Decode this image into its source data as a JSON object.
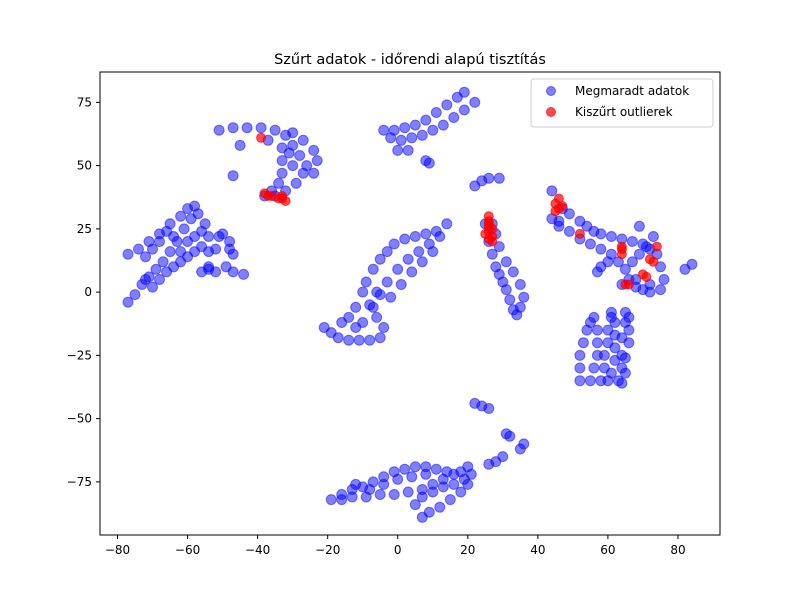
{
  "chart_data": {
    "type": "scatter",
    "title": "Szűrt adatok - időrendi alapú tisztítás",
    "xlabel": "",
    "ylabel": "",
    "xlim": [
      -85,
      92
    ],
    "ylim": [
      -96,
      87
    ],
    "x_ticks": [
      -80,
      -60,
      -40,
      -20,
      0,
      20,
      40,
      60,
      80
    ],
    "y_ticks": [
      -75,
      -50,
      -25,
      0,
      25,
      50,
      75
    ],
    "x_tick_labels": [
      "−80",
      "−60",
      "−40",
      "−20",
      "0",
      "20",
      "40",
      "60",
      "80"
    ],
    "y_tick_labels": [
      "−75",
      "−50",
      "−25",
      "0",
      "25",
      "50",
      "75"
    ],
    "grid": false,
    "legend_position": "top-right",
    "series": [
      {
        "name": "Megmaradt adatok",
        "color": "#0000ff",
        "alpha": 0.5,
        "points": [
          [
            -77,
            -4
          ],
          [
            -75,
            -1
          ],
          [
            -73,
            3
          ],
          [
            -71,
            6
          ],
          [
            -69,
            9
          ],
          [
            -67,
            12
          ],
          [
            -65,
            16
          ],
          [
            -63,
            20
          ],
          [
            -61,
            25
          ],
          [
            -59,
            29
          ],
          [
            -57,
            31
          ],
          [
            -55,
            27
          ],
          [
            -54,
            22
          ],
          [
            -54,
            16
          ],
          [
            -54,
            10
          ],
          [
            -56,
            8
          ],
          [
            -77,
            15
          ],
          [
            -74,
            17
          ],
          [
            -71,
            20
          ],
          [
            -68,
            23
          ],
          [
            -65,
            27
          ],
          [
            -62,
            30
          ],
          [
            -60,
            33
          ],
          [
            -58,
            34
          ],
          [
            -72,
            5
          ],
          [
            -70,
            2
          ],
          [
            -68,
            5
          ],
          [
            -66,
            8
          ],
          [
            -64,
            10
          ],
          [
            -62,
            12
          ],
          [
            -60,
            14
          ],
          [
            -58,
            16
          ],
          [
            -56,
            18
          ],
          [
            -60,
            20
          ],
          [
            -58,
            22
          ],
          [
            -56,
            24
          ],
          [
            -62,
            16
          ],
          [
            -64,
            22
          ],
          [
            -66,
            24
          ],
          [
            -68,
            20
          ],
          [
            -70,
            17
          ],
          [
            -72,
            14
          ],
          [
            -52,
            8
          ],
          [
            -54,
            9
          ],
          [
            -52,
            17
          ],
          [
            -51,
            22
          ],
          [
            -50,
            23
          ],
          [
            -48,
            20
          ],
          [
            -48,
            17
          ],
          [
            -47,
            15
          ],
          [
            -49,
            10
          ],
          [
            -47,
            8
          ],
          [
            -44,
            7
          ],
          [
            -51,
            64
          ],
          [
            -47,
            65
          ],
          [
            -43,
            65
          ],
          [
            -39,
            65
          ],
          [
            -35,
            64
          ],
          [
            -32,
            62
          ],
          [
            -30,
            58
          ],
          [
            -28,
            54
          ],
          [
            -26,
            50
          ],
          [
            -24,
            47
          ],
          [
            -23,
            52
          ],
          [
            -24,
            56
          ],
          [
            -27,
            60
          ],
          [
            -30,
            63
          ],
          [
            -33,
            57
          ],
          [
            -33,
            52
          ],
          [
            -33,
            47
          ],
          [
            -34,
            43
          ],
          [
            -36,
            40
          ],
          [
            -38,
            38
          ],
          [
            -35,
            38
          ],
          [
            -32,
            40
          ],
          [
            -29,
            43
          ],
          [
            -27,
            47
          ],
          [
            -30,
            50
          ],
          [
            -31,
            55
          ],
          [
            -45,
            58
          ],
          [
            -47,
            46
          ],
          [
            -37,
            60
          ],
          [
            -21,
            -14
          ],
          [
            -19,
            -16
          ],
          [
            -17,
            -18
          ],
          [
            -14,
            -19
          ],
          [
            -11,
            -19
          ],
          [
            -8,
            -19
          ],
          [
            -5,
            -18
          ],
          [
            -4,
            -14
          ],
          [
            -6,
            -10
          ],
          [
            -8,
            -5
          ],
          [
            -10,
            0
          ],
          [
            -12,
            -6
          ],
          [
            -14,
            -10
          ],
          [
            -16,
            -12
          ],
          [
            -9,
            4
          ],
          [
            -7,
            9
          ],
          [
            -5,
            13
          ],
          [
            -3,
            16
          ],
          [
            -1,
            19
          ],
          [
            2,
            21
          ],
          [
            5,
            22
          ],
          [
            8,
            23
          ],
          [
            11,
            24
          ],
          [
            14,
            27
          ],
          [
            12,
            22
          ],
          [
            9,
            19
          ],
          [
            6,
            16
          ],
          [
            3,
            13
          ],
          [
            0,
            9
          ],
          [
            -3,
            4
          ],
          [
            -5,
            -1
          ],
          [
            -7,
            -6
          ],
          [
            -10,
            -12
          ],
          [
            -2,
            -2
          ],
          [
            1,
            3
          ],
          [
            4,
            8
          ],
          [
            7,
            12
          ],
          [
            10,
            16
          ],
          [
            -6,
            0
          ],
          [
            -12,
            -14
          ],
          [
            -4,
            64
          ],
          [
            -1,
            64
          ],
          [
            2,
            65
          ],
          [
            5,
            66
          ],
          [
            8,
            68
          ],
          [
            11,
            71
          ],
          [
            14,
            74
          ],
          [
            17,
            77
          ],
          [
            19,
            79
          ],
          [
            22,
            75
          ],
          [
            19,
            72
          ],
          [
            16,
            69
          ],
          [
            13,
            66
          ],
          [
            10,
            64
          ],
          [
            7,
            62
          ],
          [
            4,
            61
          ],
          [
            1,
            60
          ],
          [
            -2,
            61
          ],
          [
            0,
            56
          ],
          [
            3,
            56
          ],
          [
            8,
            52
          ],
          [
            9,
            51
          ],
          [
            22,
            42
          ],
          [
            24,
            44
          ],
          [
            26,
            45
          ],
          [
            29,
            45
          ],
          [
            26,
            20
          ],
          [
            27,
            15
          ],
          [
            28,
            10
          ],
          [
            29,
            7
          ],
          [
            30,
            4
          ],
          [
            31,
            1
          ],
          [
            32,
            -3
          ],
          [
            33,
            -7
          ],
          [
            34,
            -9
          ],
          [
            35,
            -6
          ],
          [
            36,
            -2
          ],
          [
            35,
            3
          ],
          [
            33,
            8
          ],
          [
            31,
            12
          ],
          [
            29,
            18
          ],
          [
            28,
            23
          ],
          [
            27,
            27
          ],
          [
            25,
            27
          ],
          [
            44,
            40
          ],
          [
            44,
            29
          ],
          [
            46,
            28
          ],
          [
            47,
            33
          ],
          [
            49,
            31
          ],
          [
            52,
            28
          ],
          [
            54,
            26
          ],
          [
            56,
            24
          ],
          [
            58,
            23
          ],
          [
            61,
            22
          ],
          [
            64,
            21
          ],
          [
            67,
            20
          ],
          [
            70,
            19
          ],
          [
            72,
            17
          ],
          [
            74,
            15
          ],
          [
            75,
            10
          ],
          [
            76,
            5
          ],
          [
            75,
            1
          ],
          [
            72,
            3
          ],
          [
            68,
            5
          ],
          [
            65,
            9
          ],
          [
            63,
            12
          ],
          [
            61,
            15
          ],
          [
            58,
            17
          ],
          [
            55,
            19
          ],
          [
            52,
            21
          ],
          [
            49,
            24
          ],
          [
            46,
            26
          ],
          [
            60,
            12
          ],
          [
            58,
            10
          ],
          [
            57,
            8
          ],
          [
            64,
            3
          ],
          [
            66,
            5
          ],
          [
            68,
            2
          ],
          [
            70,
            1
          ],
          [
            72,
            0
          ],
          [
            67,
            12
          ],
          [
            69,
            15
          ],
          [
            71,
            18
          ],
          [
            73,
            22
          ],
          [
            69,
            26
          ],
          [
            82,
            9
          ],
          [
            84,
            11
          ],
          [
            52,
            -35
          ],
          [
            52,
            -30
          ],
          [
            52,
            -25
          ],
          [
            53,
            -20
          ],
          [
            54,
            -15
          ],
          [
            55,
            -12
          ],
          [
            56,
            -10
          ],
          [
            57,
            -15
          ],
          [
            57,
            -20
          ],
          [
            57,
            -25
          ],
          [
            56,
            -30
          ],
          [
            55,
            -35
          ],
          [
            58,
            -35
          ],
          [
            59,
            -30
          ],
          [
            59,
            -25
          ],
          [
            60,
            -20
          ],
          [
            60,
            -15
          ],
          [
            61,
            -10
          ],
          [
            61,
            -8
          ],
          [
            62,
            -12
          ],
          [
            62,
            -17
          ],
          [
            62,
            -22
          ],
          [
            62,
            -27
          ],
          [
            61,
            -32
          ],
          [
            60,
            -35
          ],
          [
            63,
            -35
          ],
          [
            64,
            -30
          ],
          [
            64,
            -25
          ],
          [
            64,
            -18
          ],
          [
            65,
            -12
          ],
          [
            65,
            -8
          ],
          [
            66,
            -10
          ],
          [
            66,
            -15
          ],
          [
            66,
            -20
          ],
          [
            65,
            -26
          ],
          [
            65,
            -32
          ],
          [
            64,
            -36
          ],
          [
            22,
            -44
          ],
          [
            24,
            -45
          ],
          [
            26,
            -46
          ],
          [
            31,
            -56
          ],
          [
            32,
            -57
          ],
          [
            35,
            -62
          ],
          [
            36,
            -60
          ],
          [
            26,
            -68
          ],
          [
            28,
            -67
          ],
          [
            30,
            -65
          ],
          [
            -19,
            -82
          ],
          [
            -16,
            -80
          ],
          [
            -13,
            -78
          ],
          [
            -10,
            -77
          ],
          [
            -7,
            -75
          ],
          [
            -4,
            -73
          ],
          [
            -1,
            -71
          ],
          [
            2,
            -70
          ],
          [
            5,
            -69
          ],
          [
            8,
            -69
          ],
          [
            11,
            -70
          ],
          [
            14,
            -71
          ],
          [
            16,
            -72
          ],
          [
            13,
            -74
          ],
          [
            10,
            -76
          ],
          [
            7,
            -78
          ],
          [
            3,
            -79
          ],
          [
            -1,
            -80
          ],
          [
            -5,
            -80
          ],
          [
            -9,
            -81
          ],
          [
            -13,
            -81
          ],
          [
            -16,
            -82
          ],
          [
            -8,
            -78
          ],
          [
            -4,
            -76
          ],
          [
            0,
            -74
          ],
          [
            4,
            -73
          ],
          [
            8,
            -72
          ],
          [
            -12,
            -76
          ],
          [
            7,
            -81
          ],
          [
            10,
            -79
          ],
          [
            13,
            -77
          ],
          [
            16,
            -76
          ],
          [
            19,
            -74
          ],
          [
            21,
            -72
          ],
          [
            20,
            -76
          ],
          [
            18,
            -79
          ],
          [
            15,
            -82
          ],
          [
            12,
            -85
          ],
          [
            9,
            -87
          ],
          [
            7,
            -89
          ],
          [
            5,
            -84
          ],
          [
            18,
            -71
          ],
          [
            20,
            -69
          ]
        ]
      },
      {
        "name": "Kiszűrt outlierek",
        "color": "#ff0000",
        "alpha": 0.7,
        "points": [
          [
            -39,
            61
          ],
          [
            -38,
            39
          ],
          [
            -37,
            38
          ],
          [
            -36,
            38
          ],
          [
            -33,
            38
          ],
          [
            -32,
            36
          ],
          [
            -33,
            37
          ],
          [
            -34,
            37
          ],
          [
            26,
            30
          ],
          [
            26,
            28
          ],
          [
            26,
            26
          ],
          [
            26,
            24
          ],
          [
            27,
            22
          ],
          [
            27,
            20
          ],
          [
            26,
            21
          ],
          [
            25,
            23
          ],
          [
            27,
            25
          ],
          [
            26,
            27
          ],
          [
            45,
            35
          ],
          [
            46,
            33
          ],
          [
            46,
            37
          ],
          [
            47,
            34
          ],
          [
            45,
            32
          ],
          [
            52,
            23
          ],
          [
            64,
            18
          ],
          [
            64,
            15
          ],
          [
            64,
            17
          ],
          [
            65,
            3
          ],
          [
            66,
            3
          ],
          [
            70,
            7
          ],
          [
            71,
            6
          ],
          [
            72,
            13
          ],
          [
            73,
            12
          ],
          [
            74,
            18
          ]
        ]
      }
    ]
  }
}
